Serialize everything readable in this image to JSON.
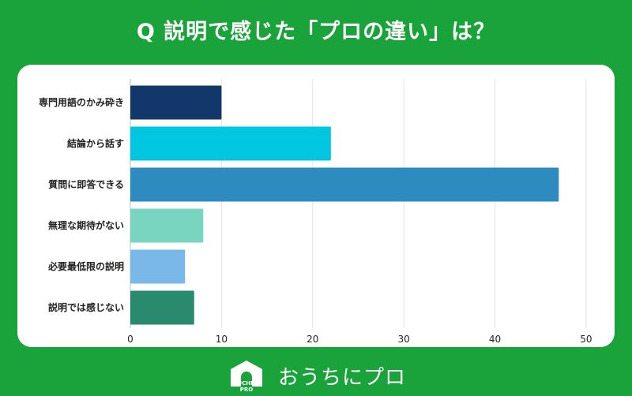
{
  "header": {
    "title": "Q 説明で感じた「プロの違い」は？"
  },
  "brand": {
    "name": "おうちにプロ",
    "logo_text": "OUCHI ni PRO"
  },
  "colors": {
    "background": "#1aa33a",
    "card": "#ffffff",
    "grid": "#e3e3e3"
  },
  "chart_data": {
    "type": "bar",
    "orientation": "horizontal",
    "categories": [
      "専門用語のかみ砕き",
      "結論から話す",
      "質問に即答できる",
      "無理な期待がない",
      "必要最低限の説明",
      "説明では感じない"
    ],
    "values": [
      10,
      22,
      47,
      8,
      6,
      7
    ],
    "bar_colors": [
      "#12386b",
      "#00c6e0",
      "#2e8bc0",
      "#79d5bf",
      "#7ab8ea",
      "#2a8a6e"
    ],
    "xlim": [
      0,
      52
    ],
    "xticks": [
      0,
      10,
      20,
      30,
      40,
      50
    ],
    "grid": true,
    "xlabel": "",
    "ylabel": ""
  }
}
